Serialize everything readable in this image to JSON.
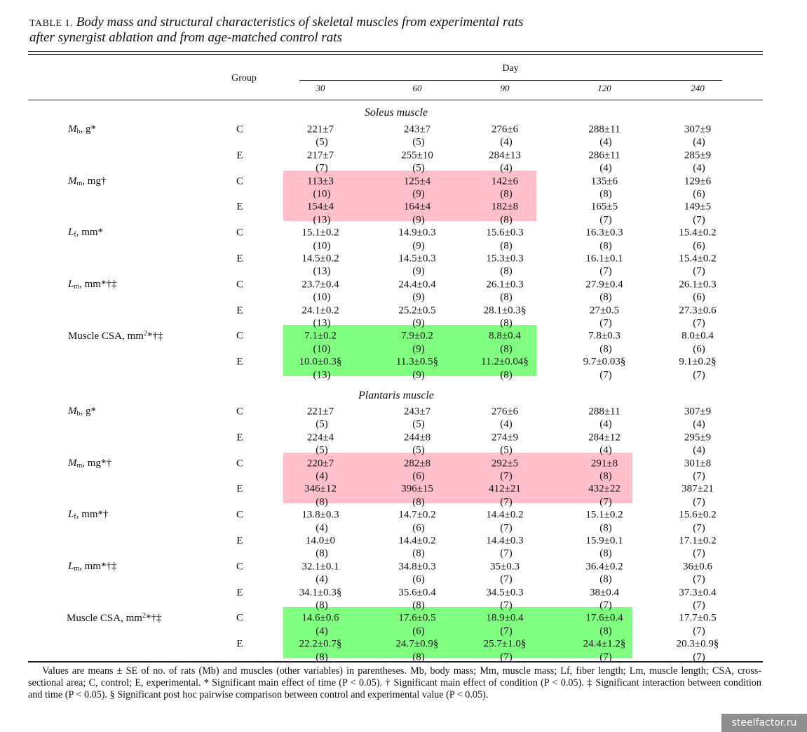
{
  "title": {
    "label": "TABLE 1.",
    "line1": "Body mass and structural characteristics of skeletal muscles from experimental rats",
    "line2": "after synergist ablation and from age-matched control rats"
  },
  "header": {
    "group": "Group",
    "day": "Day",
    "days": [
      "30",
      "60",
      "90",
      "120",
      "240"
    ]
  },
  "highlight_colors": {
    "pink": "#ffc0cb",
    "green": "#80ff80"
  },
  "sections": [
    {
      "name": "Soleus muscle",
      "rows": [
        {
          "label": {
            "main": "M",
            "sub": "b",
            "rest": ", g*"
          },
          "C": {
            "values": [
              "221±7",
              "243±7",
              "276±6",
              "288±11",
              "307±9"
            ],
            "n": [
              "(5)",
              "(5)",
              "(4)",
              "(4)",
              "(4)"
            ]
          },
          "E": {
            "values": [
              "217±7",
              "255±10",
              "284±13",
              "286±11",
              "285±9"
            ],
            "n": [
              "(7)",
              "(5)",
              "(4)",
              "(4)",
              "(4)"
            ]
          }
        },
        {
          "label": {
            "main": "M",
            "sub": "m",
            "rest": ", mg†"
          },
          "highlight": {
            "color": "pink",
            "columns": [
              0,
              1,
              2
            ]
          },
          "C": {
            "values": [
              "113±3",
              "125±4",
              "142±6",
              "135±6",
              "129±6"
            ],
            "n": [
              "(10)",
              "(9)",
              "(8)",
              "(8)",
              "(6)"
            ]
          },
          "E": {
            "values": [
              "154±4",
              "164±4",
              "182±8",
              "165±5",
              "149±5"
            ],
            "n": [
              "(13)",
              "(9)",
              "(8)",
              "(7)",
              "(7)"
            ]
          }
        },
        {
          "label": {
            "main": "L",
            "sub": "f",
            "rest": ", mm*"
          },
          "C": {
            "values": [
              "15.1±0.2",
              "14.9±0.3",
              "15.6±0.3",
              "16.3±0.3",
              "15.4±0.2"
            ],
            "n": [
              "(10)",
              "(9)",
              "(8)",
              "(8)",
              "(6)"
            ]
          },
          "E": {
            "values": [
              "14.5±0.2",
              "14.5±0.3",
              "15.3±0.3",
              "16.1±0.1",
              "15.4±0.2"
            ],
            "n": [
              "(13)",
              "(9)",
              "(8)",
              "(7)",
              "(7)"
            ]
          }
        },
        {
          "label": {
            "main": "L",
            "sub": "m",
            "rest": ", mm*†‡"
          },
          "C": {
            "values": [
              "23.7±0.4",
              "24.4±0.4",
              "26.1±0.3",
              "27.9±0.4",
              "26.1±0.3"
            ],
            "n": [
              "(10)",
              "(9)",
              "(8)",
              "(8)",
              "(6)"
            ]
          },
          "E": {
            "values": [
              "24.1±0.2",
              "25.2±0.5",
              "28.1±0.3§",
              "27±0.5",
              "27.3±0.6"
            ],
            "n": [
              "(13)",
              "(9)",
              "(8)",
              "(7)",
              "(7)"
            ]
          }
        },
        {
          "label": {
            "plain": "Muscle CSA, mm",
            "sup": "2",
            "rest": "*†‡"
          },
          "highlight": {
            "color": "green",
            "columns": [
              0,
              1,
              2
            ]
          },
          "C": {
            "values": [
              "7.1±0.2",
              "7.9±0.2",
              "8.8±0.4",
              "7.8±0.3",
              "8.0±0.4"
            ],
            "n": [
              "(10)",
              "(9)",
              "(8)",
              "(8)",
              "(6)"
            ]
          },
          "E": {
            "values": [
              "10.0±0.3§",
              "11.3±0.5§",
              "11.2±0.04§",
              "9.7±0.03§",
              "9.1±0.2§"
            ],
            "n": [
              "(13)",
              "(9)",
              "(8)",
              "(7)",
              "(7)"
            ]
          }
        }
      ]
    },
    {
      "name": "Plantaris muscle",
      "rows": [
        {
          "label": {
            "main": "M",
            "sub": "b",
            "rest": ", g*"
          },
          "C": {
            "values": [
              "221±7",
              "243±7",
              "276±6",
              "288±11",
              "307±9"
            ],
            "n": [
              "(5)",
              "(5)",
              "(4)",
              "(4)",
              "(4)"
            ]
          },
          "E": {
            "values": [
              "224±4",
              "244±8",
              "274±9",
              "284±12",
              "295±9"
            ],
            "n": [
              "(5)",
              "(5)",
              "(5)",
              "(4)",
              "(4)"
            ]
          }
        },
        {
          "label": {
            "main": "M",
            "sub": "m",
            "rest": ", mg*†"
          },
          "highlight": {
            "color": "pink",
            "columns": [
              0,
              1,
              2,
              3
            ]
          },
          "C": {
            "values": [
              "220±7",
              "282±8",
              "292±5",
              "291±8",
              "301±8"
            ],
            "n": [
              "(4)",
              "(6)",
              "(7)",
              "(8)",
              "(7)"
            ]
          },
          "E": {
            "values": [
              "346±12",
              "396±15",
              "412±21",
              "432±22",
              "387±21"
            ],
            "n": [
              "(8)",
              "(8)",
              "(7)",
              "(7)",
              "(7)"
            ]
          }
        },
        {
          "label": {
            "main": "L",
            "sub": "f",
            "rest": ", mm*†"
          },
          "C": {
            "values": [
              "13.8±0.3",
              "14.7±0.2",
              "14.4±0.2",
              "15.1±0.2",
              "15.6±0.2"
            ],
            "n": [
              "(4)",
              "(6)",
              "(7)",
              "(8)",
              "(7)"
            ]
          },
          "E": {
            "values": [
              "14.0±0",
              "14.4±0.2",
              "14.4±0.3",
              "15.9±0.1",
              "17.1±0.2"
            ],
            "n": [
              "(8)",
              "(8)",
              "(7)",
              "(8)",
              "(7)"
            ]
          }
        },
        {
          "label": {
            "main": "L",
            "sub": "m",
            "rest": ", mm*†‡"
          },
          "C": {
            "values": [
              "32.1±0.1",
              "34.8±0.3",
              "35±0.3",
              "36.4±0.2",
              "36±0.6"
            ],
            "n": [
              "(4)",
              "(6)",
              "(7)",
              "(8)",
              "(7)"
            ]
          },
          "E": {
            "values": [
              "34.1±0.3§",
              "35.6±0.4",
              "34.5±0.3",
              "38±0.4",
              "37.3±0.4"
            ],
            "n": [
              "(8)",
              "(8)",
              "(7)",
              "(7)",
              "(7)"
            ]
          }
        },
        {
          "label": {
            "plain": "Muscle CSA, mm",
            "sup": "2",
            "rest": "*†‡"
          },
          "highlight": {
            "color": "green",
            "columns": [
              0,
              1,
              2,
              3
            ]
          },
          "C": {
            "values": [
              "14.6±0.6",
              "17.6±0.5",
              "18.9±0.4",
              "17.6±0.4",
              "17.7±0.5"
            ],
            "n": [
              "(4)",
              "(6)",
              "(7)",
              "(8)",
              "(7)"
            ]
          },
          "E": {
            "values": [
              "22.2±0.7§",
              "24.7±0.9§",
              "25.7±1.0§",
              "24.4±1.2§",
              "20.3±0.9§"
            ],
            "n": [
              "(8)",
              "(8)",
              "(7)",
              "(7)",
              "(7)"
            ]
          }
        }
      ]
    }
  ],
  "group_labels": {
    "C": "C",
    "E": "E"
  },
  "footnote": "Values are means ± SE of no. of rats (Mb) and muscles (other variables) in parentheses. Mb, body mass; Mm, muscle mass; Lf, fiber length; Lm, muscle length; CSA, cross-sectional area; C, control; E, experimental. * Significant main effect of time (P < 0.05). † Significant main effect of condition (P < 0.05). ‡ Significant interaction between condition and time (P < 0.05). § Significant post hoc pairwise comparison between control and experimental value (P < 0.05).",
  "watermark": "steelfactor.ru"
}
